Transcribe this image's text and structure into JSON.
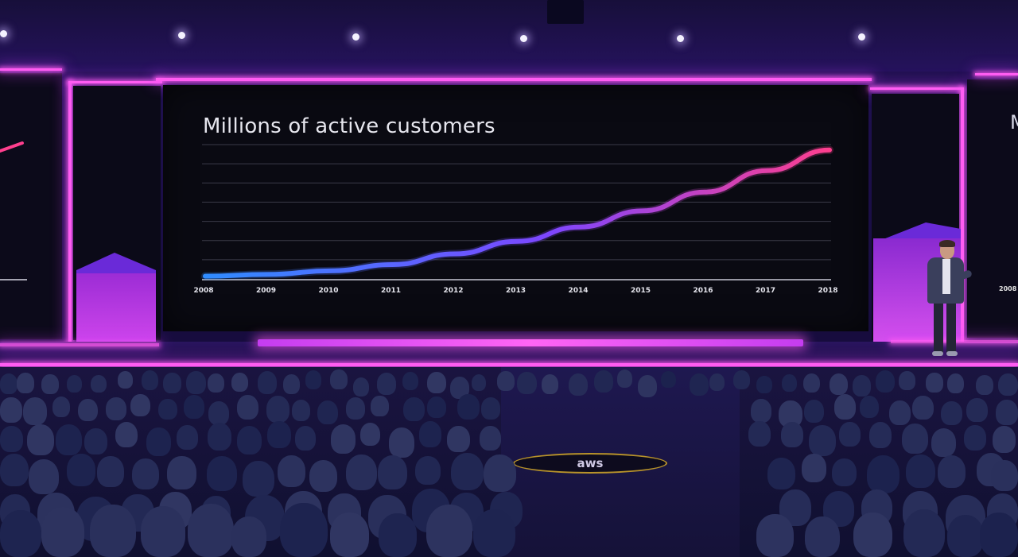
{
  "scene": {
    "description_colors": {
      "neon": "#ff5cf2",
      "screen_background": "#0a0a12",
      "line_start": "#2f8cff",
      "line_mid": "#7d46ff",
      "line_end": "#ff3f8e"
    },
    "floor_logo_text": "aws"
  },
  "slide": {
    "title": "Millions of active customers"
  },
  "side_fragments": {
    "right_title": "M",
    "right_year": "2008"
  },
  "chart_data": {
    "type": "line",
    "title": "Millions of active customers",
    "xlabel": "",
    "ylabel": "",
    "categories": [
      "2008",
      "2009",
      "2010",
      "2011",
      "2012",
      "2013",
      "2014",
      "2015",
      "2016",
      "2017",
      "2018"
    ],
    "y_tick_labels": [],
    "grid": true,
    "gridlines_count": 7,
    "series": [
      {
        "values": [
          0.3,
          0.5,
          0.9,
          1.6,
          2.8,
          4.2,
          5.8,
          7.6,
          9.7,
          12.1,
          14.4
        ]
      }
    ],
    "ylim": [
      0,
      15
    ]
  }
}
